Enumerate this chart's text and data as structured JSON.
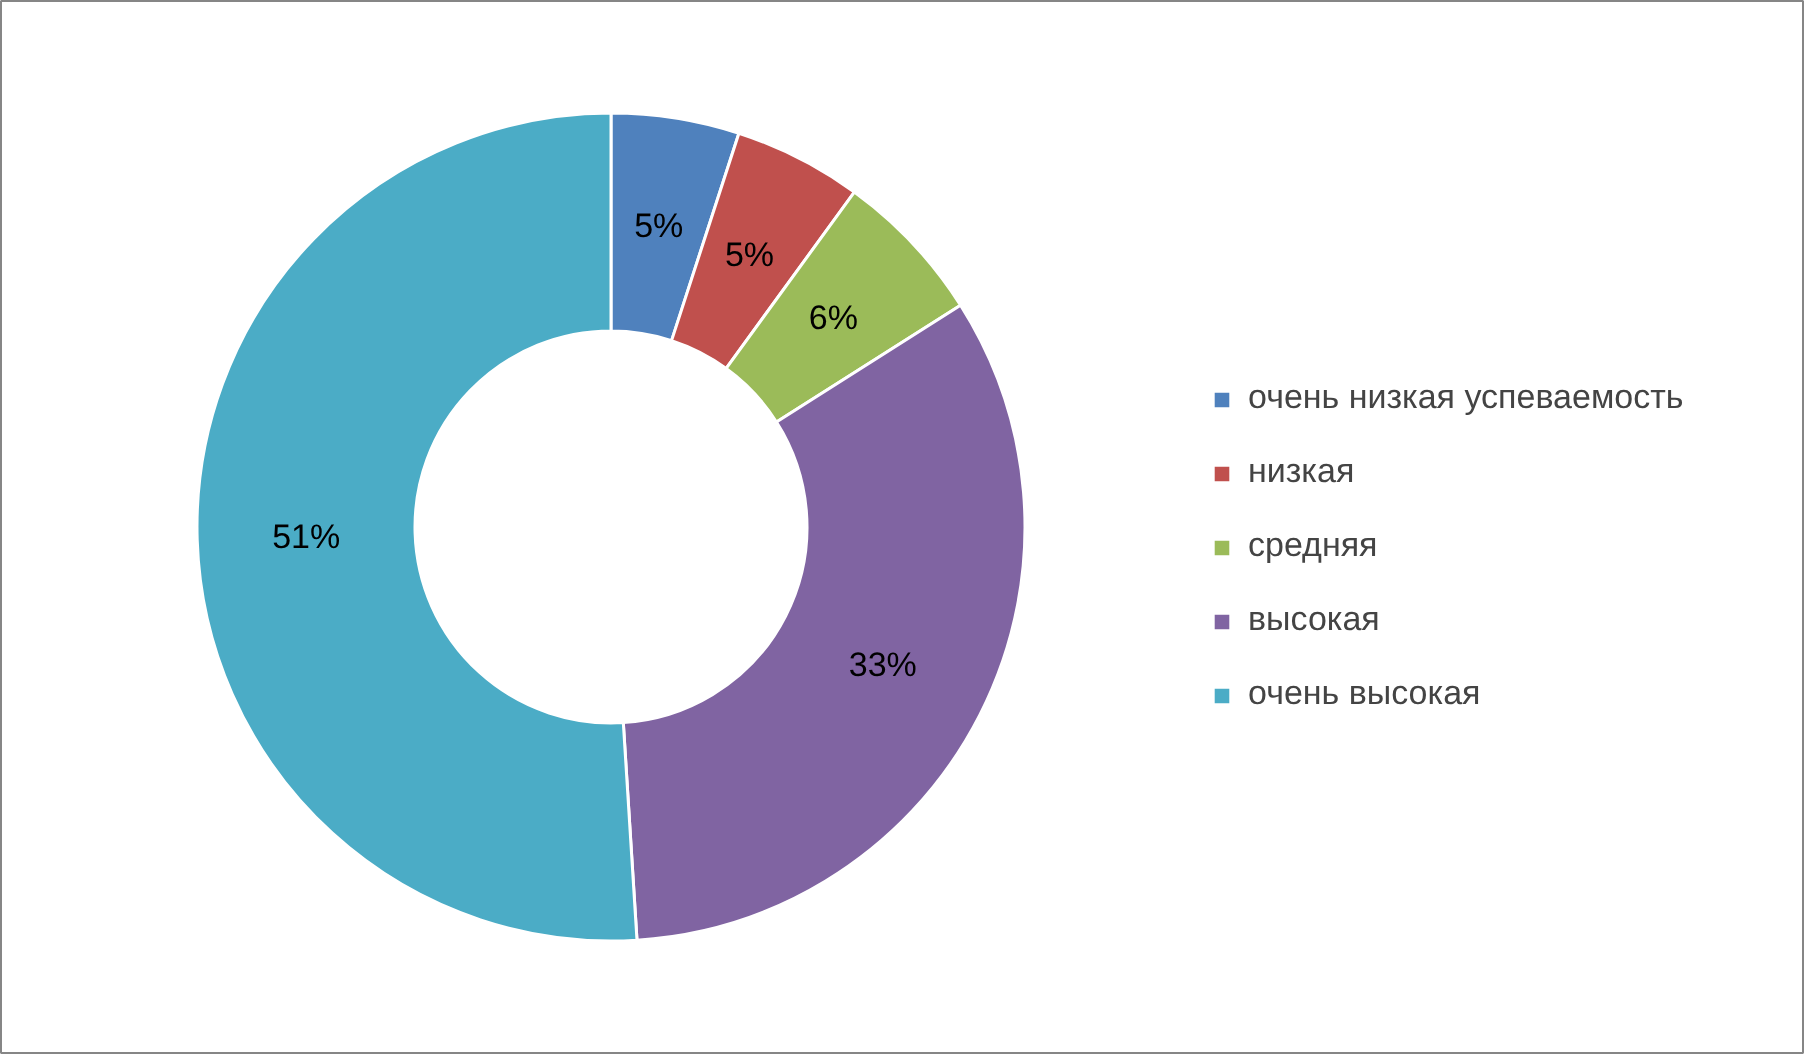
{
  "chart_data": {
    "type": "donut",
    "categories": [
      "очень низкая успеваемость",
      "низкая",
      "средняя",
      "высокая",
      "очень высокая"
    ],
    "values": [
      5,
      5,
      6,
      33,
      51
    ],
    "colors": [
      "#4f81bd",
      "#c0504d",
      "#9bbb59",
      "#8064a2",
      "#4bacc6"
    ],
    "value_labels": [
      "5%",
      "5%",
      "6%",
      "33%",
      "51%"
    ],
    "legend": "right"
  }
}
